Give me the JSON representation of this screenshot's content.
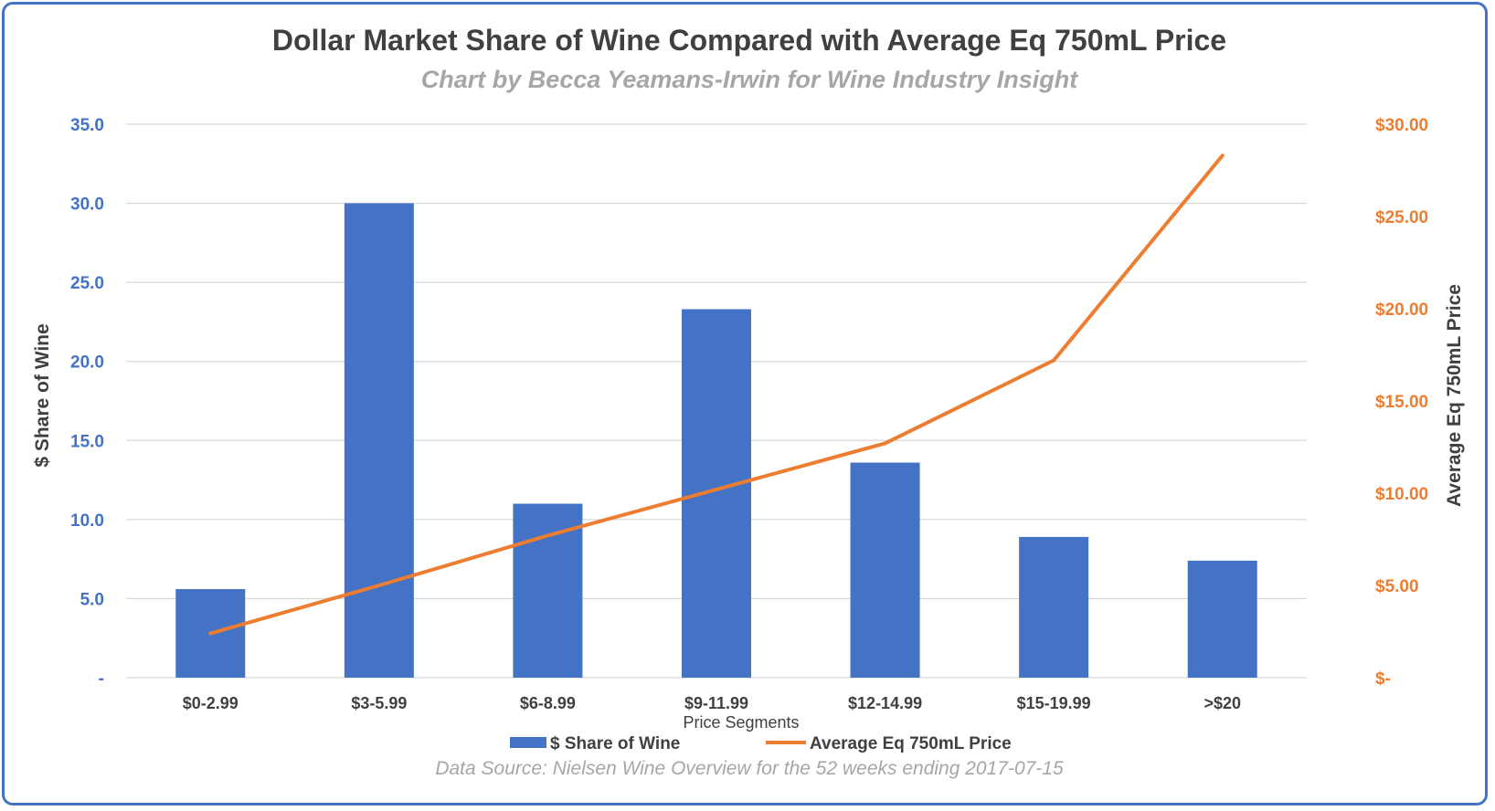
{
  "chart_data": {
    "type": "bar",
    "title": "Dollar Market Share of Wine Compared with Average Eq 750mL Price",
    "subtitle": "Chart by Becca Yeamans-Irwin for Wine Industry Insight",
    "xlabel": "Price Segments",
    "ylabel": "$ Share of Wine",
    "y2label": "Average Eq 750mL Price",
    "categories": [
      "$0-2.99",
      "$3-5.99",
      "$6-8.99",
      "$9-11.99",
      "$12-14.99",
      "$15-19.99",
      ">$20"
    ],
    "series": [
      {
        "name": "$ Share of Wine",
        "type": "bar",
        "axis": "left",
        "color": "#4472c4",
        "values": [
          5.6,
          30.0,
          11.0,
          23.3,
          13.6,
          8.9,
          7.4
        ]
      },
      {
        "name": "Average Eq 750mL Price",
        "type": "line",
        "axis": "right",
        "color": "#ed7d31",
        "values": [
          2.4,
          5.0,
          7.7,
          10.2,
          12.7,
          17.2,
          28.3
        ]
      }
    ],
    "ylim": [
      0,
      35
    ],
    "y2lim": [
      0,
      30
    ],
    "yticks": [
      "-",
      "5.0",
      "10.0",
      "15.0",
      "20.0",
      "25.0",
      "30.0",
      "35.0"
    ],
    "y2ticks": [
      "$-",
      "$5.00",
      "$10.00",
      "$15.00",
      "$20.00",
      "$25.00",
      "$30.00"
    ],
    "grid": true,
    "legend_position": "bottom",
    "source": "Data Source: Nielsen Wine Overview for the 52 weeks ending 2017-07-15"
  },
  "colors": {
    "frame": "#4472c4",
    "bar": "#4472c4",
    "line": "#ed7d31",
    "grid": "#d9d9d9"
  }
}
